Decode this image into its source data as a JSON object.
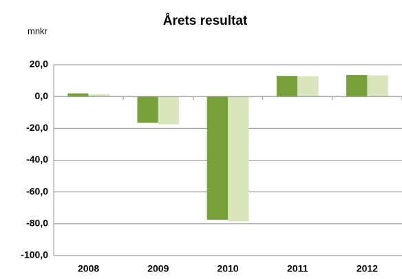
{
  "chart_data": {
    "type": "bar",
    "title": "Årets resultat",
    "y_label": "mnkr",
    "categories": [
      "2008",
      "2009",
      "2010",
      "2011",
      "2012"
    ],
    "series": [
      {
        "color": "#77a03a",
        "values": [
          2,
          -16.5,
          -77.5,
          13,
          13.5
        ]
      },
      {
        "color": "#d8e5bd",
        "values": [
          1.5,
          -17.5,
          -78.5,
          12.8,
          13.3
        ]
      }
    ],
    "ylim": [
      -100,
      20
    ],
    "yticks": [
      {
        "value": -100,
        "label": "-100,0"
      },
      {
        "value": -80,
        "label": "-80,0"
      },
      {
        "value": -60,
        "label": "-60,0"
      },
      {
        "value": -40,
        "label": "-40,0"
      },
      {
        "value": -20,
        "label": "-20,0"
      },
      {
        "value": 0,
        "label": "0,0"
      },
      {
        "value": 20,
        "label": "20,0"
      }
    ],
    "grid": true
  }
}
